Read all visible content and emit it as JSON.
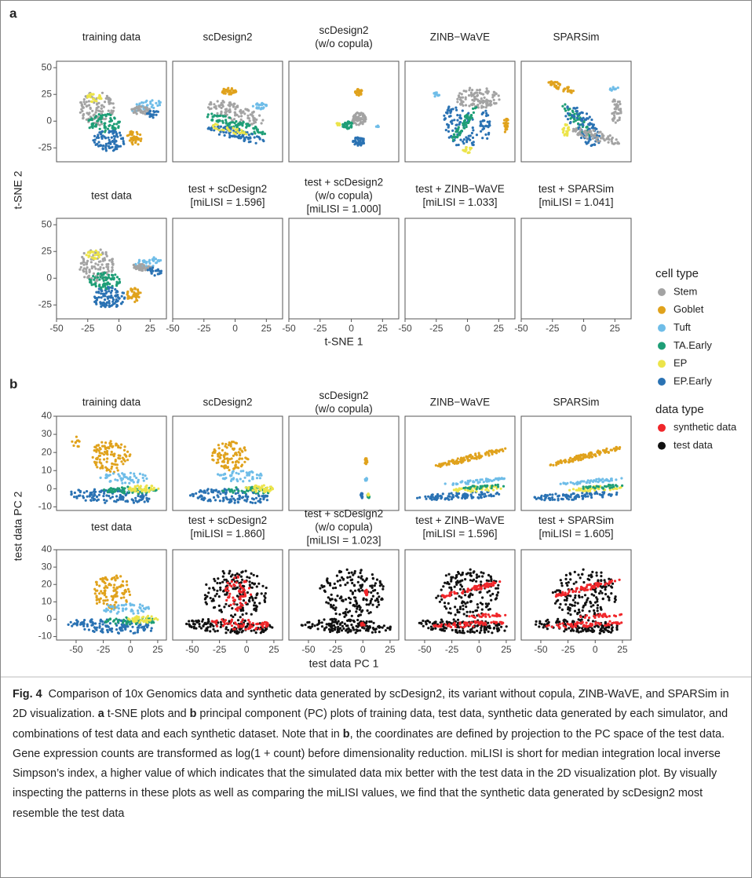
{
  "figure": {
    "panel_a": {
      "label": "a",
      "top_titles": [
        [
          "training data"
        ],
        [
          "scDesign2"
        ],
        [
          "scDesign2",
          "(w/o copula)"
        ],
        [
          "ZINB−WaVE"
        ],
        [
          "SPARSim"
        ]
      ],
      "bottom_titles": [
        [
          "test data"
        ],
        [
          "test + scDesign2",
          "[miLISI = 1.596]"
        ],
        [
          "test + scDesign2",
          "(w/o copula)",
          "[miLISI = 1.000]"
        ],
        [
          "test + ZINB−WaVE",
          "[miLISI = 1.033]"
        ],
        [
          "test + SPARSim",
          "[miLISI = 1.041]"
        ]
      ],
      "x_label": "t-SNE 1",
      "y_label": "t-SNE 2",
      "xlim": [
        -50,
        38
      ],
      "ylim": [
        -38,
        56
      ],
      "xticks": [
        -50,
        -25,
        0,
        25
      ],
      "yticks": [
        50,
        25,
        0,
        -25
      ]
    },
    "panel_b": {
      "label": "b",
      "top_titles": [
        [
          "training data"
        ],
        [
          "scDesign2"
        ],
        [
          "scDesign2",
          "(w/o copula)"
        ],
        [
          "ZINB−WaVE"
        ],
        [
          "SPARSim"
        ]
      ],
      "bottom_titles": [
        [
          "test data"
        ],
        [
          "test + scDesign2",
          "[miLISI = 1.860]"
        ],
        [
          "test + scDesign2",
          "(w/o copula)",
          "[miLISI = 1.023]"
        ],
        [
          "test + ZINB−WaVE",
          "[miLISI = 1.596]"
        ],
        [
          "test + SPARSim",
          "[miLISI = 1.605]"
        ]
      ],
      "x_label": "test data PC 1",
      "y_label": "test data PC 2",
      "xlim": [
        -68,
        33
      ],
      "ylim": [
        -12,
        40
      ],
      "xticks": [
        -50,
        -25,
        0,
        25
      ],
      "yticks": [
        40,
        30,
        20,
        10,
        0,
        -10
      ]
    },
    "legend": [
      {
        "title": "cell type",
        "items": [
          {
            "name": "Stem",
            "color": "#a3a3a3"
          },
          {
            "name": "Goblet",
            "color": "#e0a21c"
          },
          {
            "name": "Tuft",
            "color": "#6fbde8"
          },
          {
            "name": "TA.Early",
            "color": "#1e9e76"
          },
          {
            "name": "EP",
            "color": "#ece44a"
          },
          {
            "name": "EP.Early",
            "color": "#2a72b3"
          }
        ]
      },
      {
        "title": "data type",
        "items": [
          {
            "name": "synthetic data",
            "color": "#f0262a"
          },
          {
            "name": "test data",
            "color": "#111111"
          }
        ]
      }
    ],
    "caption": [
      {
        "text": "Fig. 4",
        "bold": true
      },
      {
        "text": "  Comparison of 10x Genomics data and synthetic data generated by scDesign2, its variant without copula, ZINB-WaVE, and SPARSim in 2D visualization. ",
        "bold": false
      },
      {
        "text": "a",
        "bold": true
      },
      {
        "text": " t-SNE plots and ",
        "bold": false
      },
      {
        "text": "b",
        "bold": true
      },
      {
        "text": " principal component (PC) plots of training data, test data, synthetic data generated by each simulator, and combinations of test data and each synthetic dataset. Note that in ",
        "bold": false
      },
      {
        "text": "b",
        "bold": true
      },
      {
        "text": ", the coordinates are defined by projection to the PC space of the test data. Gene expression counts are transformed as log(1 + count) before dimensionality reduction. miLISI is short for median integration local inverse Simpson’s index, a higher value of which indicates that the simulated data mix better with the test data in the 2D visualization plot. By visually inspecting the patterns in these plots as well as comparing the miLISI values, we find that the synthetic data generated by scDesign2 most resemble the test data",
        "bold": false
      }
    ]
  }
}
